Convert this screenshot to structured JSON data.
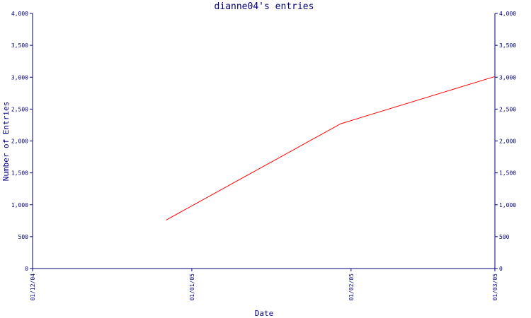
{
  "chart_data": {
    "type": "line",
    "title": "dianne04's entries",
    "xlabel": "Date",
    "ylabel": "Number of Entries",
    "x_tick_labels": [
      "01/12/04",
      "01/01/05",
      "01/02/05",
      "01/03/05"
    ],
    "x_ticks": [
      "2004-12-01",
      "2005-01-01",
      "2005-02-01",
      "2005-03-01"
    ],
    "xlim": [
      "2004-12-01",
      "2005-03-01"
    ],
    "ylim": [
      0,
      4000
    ],
    "y_ticks": [
      0,
      500,
      1000,
      1500,
      2000,
      2500,
      3000,
      3500,
      4000
    ],
    "y_tick_labels": [
      "0",
      "500",
      "1,000",
      "1,500",
      "2,000",
      "2,500",
      "3,000",
      "3,500",
      "4,000"
    ],
    "right_axis": true,
    "grid": false,
    "series": [
      {
        "x": [
          "2004-12-27",
          "2005-01-30",
          "2005-03-01"
        ],
        "values": [
          760,
          2270,
          3010
        ]
      }
    ]
  },
  "colors": {
    "axis": "#000080",
    "line": "#ff0000",
    "background": "#ffffff"
  }
}
